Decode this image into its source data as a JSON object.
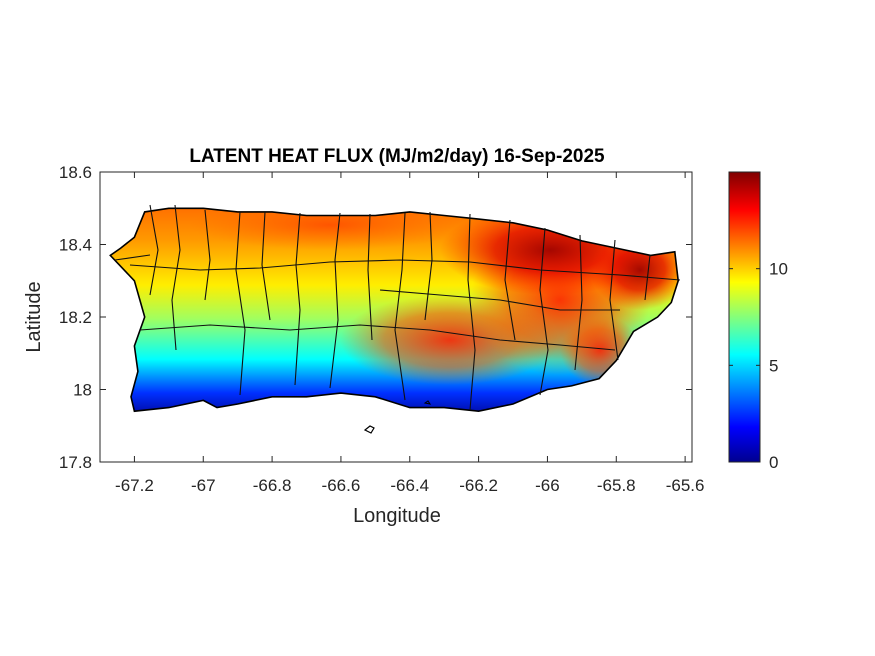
{
  "chart_data": {
    "type": "heatmap",
    "title": "LATENT HEAT FLUX (MJ/m2/day) 16-Sep-2025",
    "xlabel": "Longitude",
    "ylabel": "Latitude",
    "xlim": [
      -67.3,
      -65.58
    ],
    "ylim": [
      17.8,
      18.6
    ],
    "xticks": [
      "-67.2",
      "-67",
      "-66.8",
      "-66.6",
      "-66.4",
      "-66.2",
      "-66",
      "-65.8",
      "-65.6"
    ],
    "yticks": [
      "18.6",
      "18.4",
      "18.2",
      "18",
      "17.8"
    ],
    "colorbar": {
      "colormap": "jet",
      "range": [
        0,
        15
      ],
      "ticks": [
        "0",
        "5",
        "10"
      ]
    },
    "value_regions": [
      {
        "region": "south-west coast",
        "approx_value": 1
      },
      {
        "region": "south-central coast",
        "approx_value": 5
      },
      {
        "region": "south-west interior",
        "approx_value": 7
      },
      {
        "region": "central belt",
        "approx_value": 9
      },
      {
        "region": "north coast",
        "approx_value": 11
      },
      {
        "region": "south-east interior",
        "approx_value": 12
      },
      {
        "region": "north-east",
        "approx_value": 14
      }
    ],
    "colors": {
      "dark_blue": "#00008f",
      "blue": "#0000ff",
      "cyan": "#00ffff",
      "yellow": "#ffff00",
      "orange": "#ff8000",
      "red": "#ff0000",
      "dark_red": "#800000"
    }
  }
}
